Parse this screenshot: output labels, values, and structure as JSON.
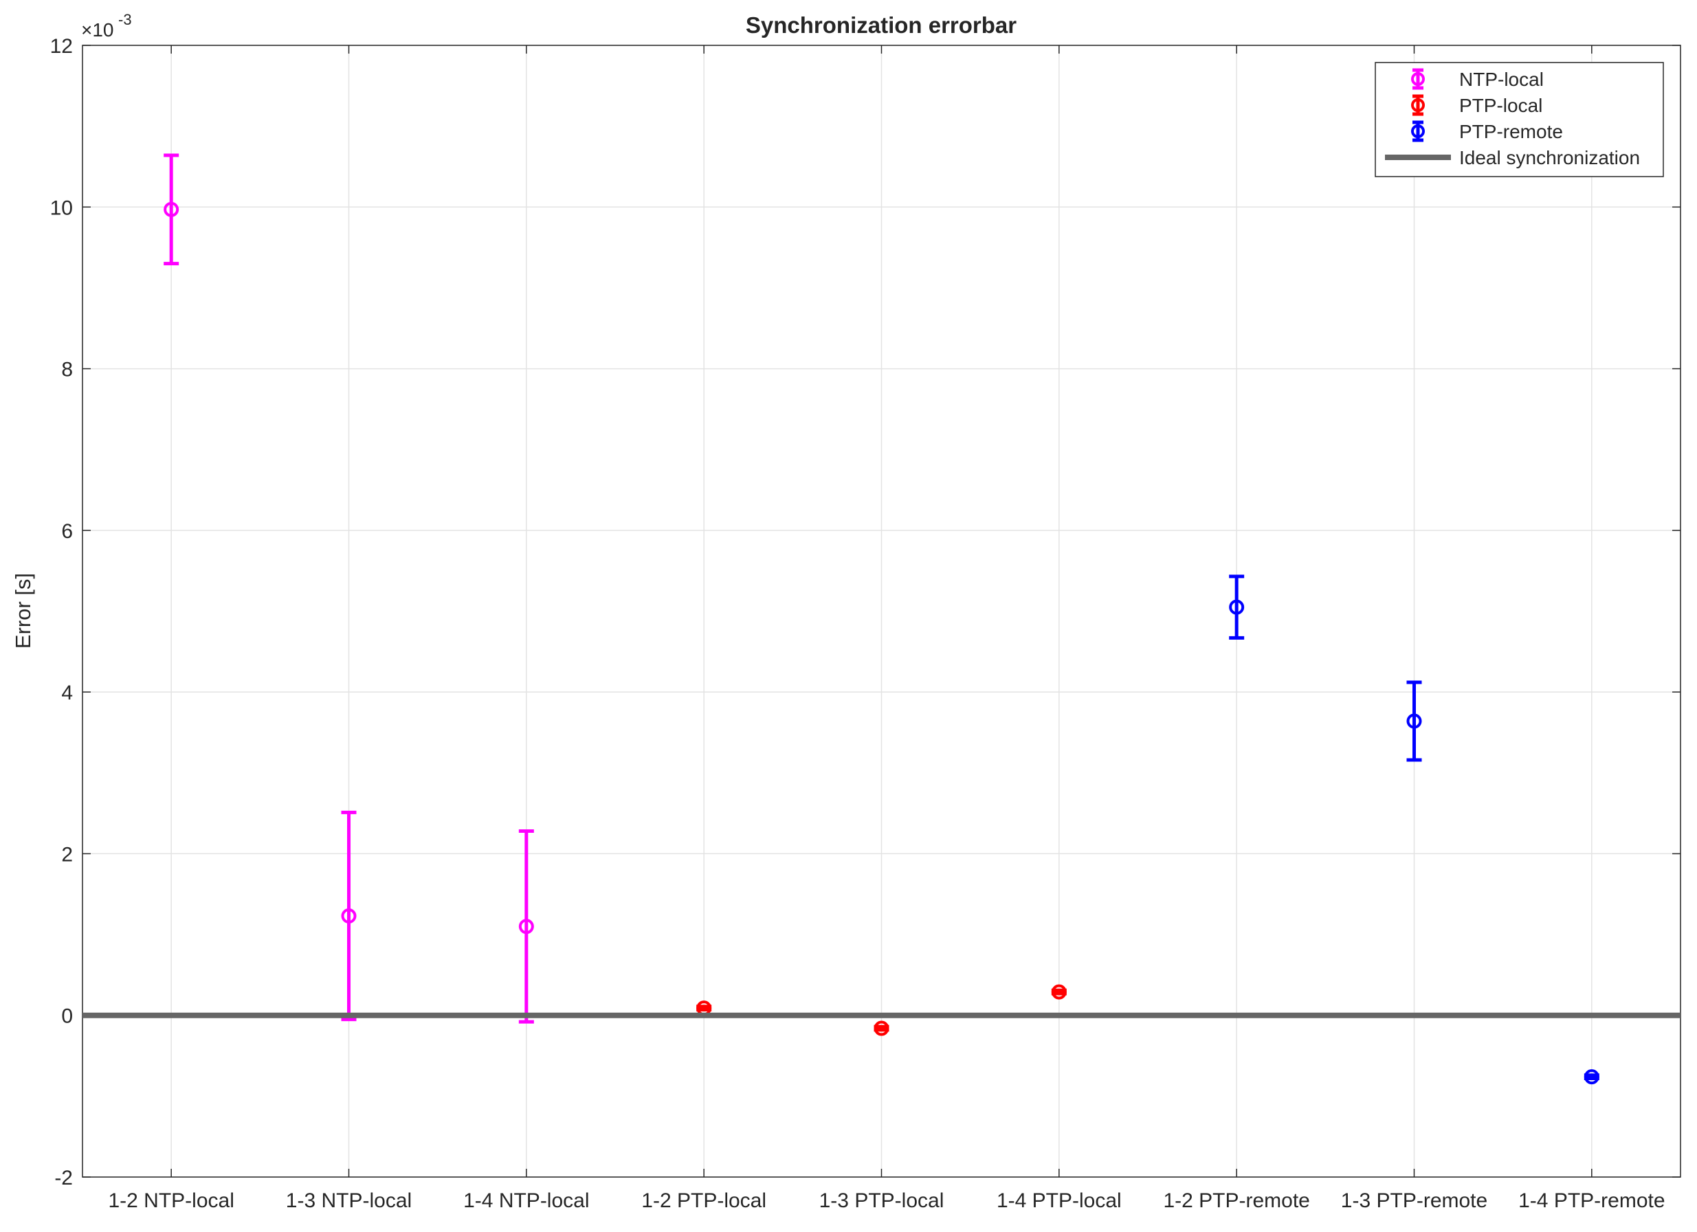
{
  "chart_data": {
    "type": "errorbar",
    "title": "Synchronization errorbar",
    "y_label": "Error [s]",
    "y_multiplier": {
      "base": "×10",
      "exponent": "-3"
    },
    "categories": [
      "1-2 NTP-local",
      "1-3 NTP-local",
      "1-4 NTP-local",
      "1-2 PTP-local",
      "1-3 PTP-local",
      "1-4 PTP-local",
      "1-2 PTP-remote",
      "1-3 PTP-remote",
      "1-4 PTP-remote"
    ],
    "ylim": [
      -2,
      12
    ],
    "yticks": [
      -2,
      0,
      2,
      4,
      6,
      8,
      10,
      12
    ],
    "grid": true,
    "legend": "top-right",
    "series": [
      {
        "name": "NTP-local",
        "color": "#ff00ff",
        "values": [
          9.97,
          1.23,
          1.1,
          null,
          null,
          null,
          null,
          null,
          null
        ],
        "errors": [
          0.67,
          1.28,
          1.18,
          null,
          null,
          null,
          null,
          null,
          null
        ]
      },
      {
        "name": "PTP-local",
        "color": "#ff0000",
        "values": [
          null,
          null,
          null,
          0.09,
          -0.16,
          0.29,
          null,
          null,
          null
        ],
        "errors": [
          null,
          null,
          null,
          0.02,
          0.02,
          0.02,
          null,
          null,
          null
        ]
      },
      {
        "name": "PTP-remote",
        "color": "#0000ff",
        "values": [
          null,
          null,
          null,
          null,
          null,
          null,
          5.05,
          3.64,
          -0.76
        ],
        "errors": [
          null,
          null,
          null,
          null,
          null,
          null,
          0.38,
          0.48,
          0.02
        ]
      },
      {
        "name": "Ideal synchronization",
        "color": "#666666",
        "value": 0
      }
    ]
  }
}
